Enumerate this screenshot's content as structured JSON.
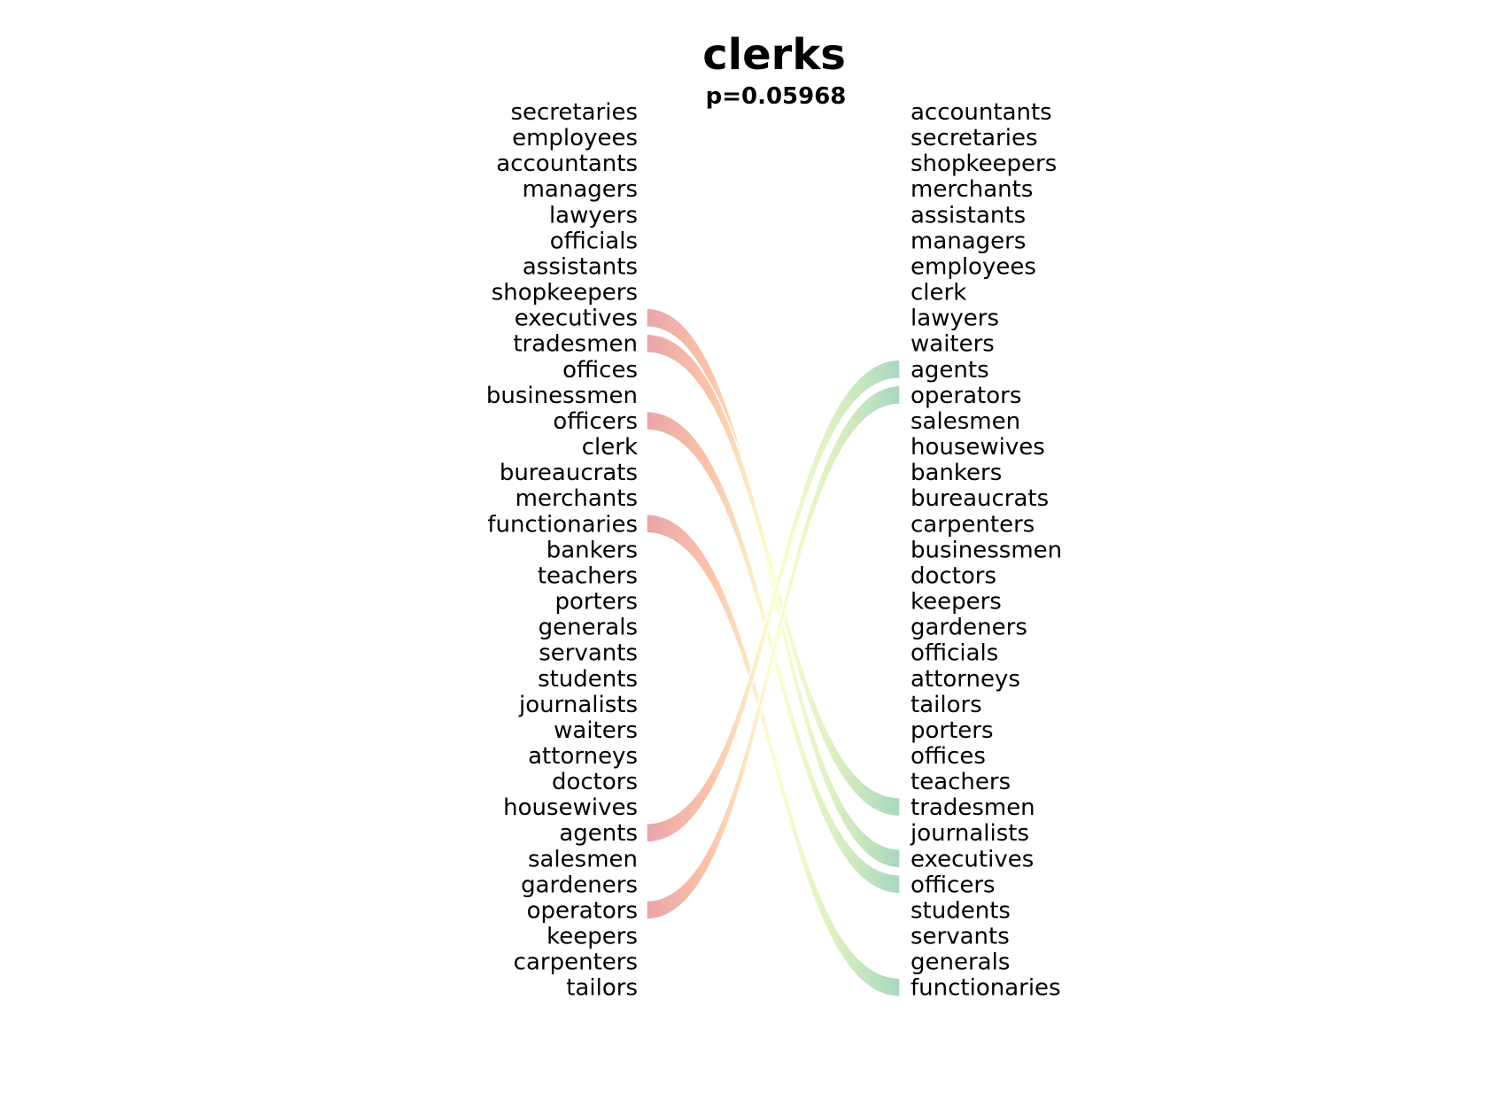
{
  "chart_data": {
    "type": "slope",
    "title": "clerks",
    "subtitle": "p=0.05968",
    "left_labels": [
      "secretaries",
      "employees",
      "accountants",
      "managers",
      "lawyers",
      "officials",
      "assistants",
      "shopkeepers",
      "executives",
      "tradesmen",
      "offices",
      "businessmen",
      "officers",
      "clerk",
      "bureaucrats",
      "merchants",
      "functionaries",
      "bankers",
      "teachers",
      "porters",
      "generals",
      "servants",
      "students",
      "journalists",
      "waiters",
      "attorneys",
      "doctors",
      "housewives",
      "agents",
      "salesmen",
      "gardeners",
      "operators",
      "keepers",
      "carpenters",
      "tailors"
    ],
    "right_labels": [
      "accountants",
      "secretaries",
      "shopkeepers",
      "merchants",
      "assistants",
      "managers",
      "employees",
      "clerk",
      "lawyers",
      "waiters",
      "agents",
      "operators",
      "salesmen",
      "housewives",
      "bankers",
      "bureaucrats",
      "carpenters",
      "businessmen",
      "doctors",
      "keepers",
      "gardeners",
      "officials",
      "attorneys",
      "tailors",
      "porters",
      "offices",
      "teachers",
      "tradesmen",
      "journalists",
      "executives",
      "officers",
      "students",
      "servants",
      "generals",
      "functionaries"
    ],
    "highlighted": [
      "executives",
      "tradesmen",
      "officers",
      "functionaries",
      "agents",
      "operators"
    ],
    "colors": {
      "left_end": "#e8a5a8",
      "left_mid": "#fcc3a8",
      "center": "#fbffd0",
      "right_mid": "#d9efc0",
      "right_end": "#a7d7bf",
      "text": "#000000"
    }
  }
}
